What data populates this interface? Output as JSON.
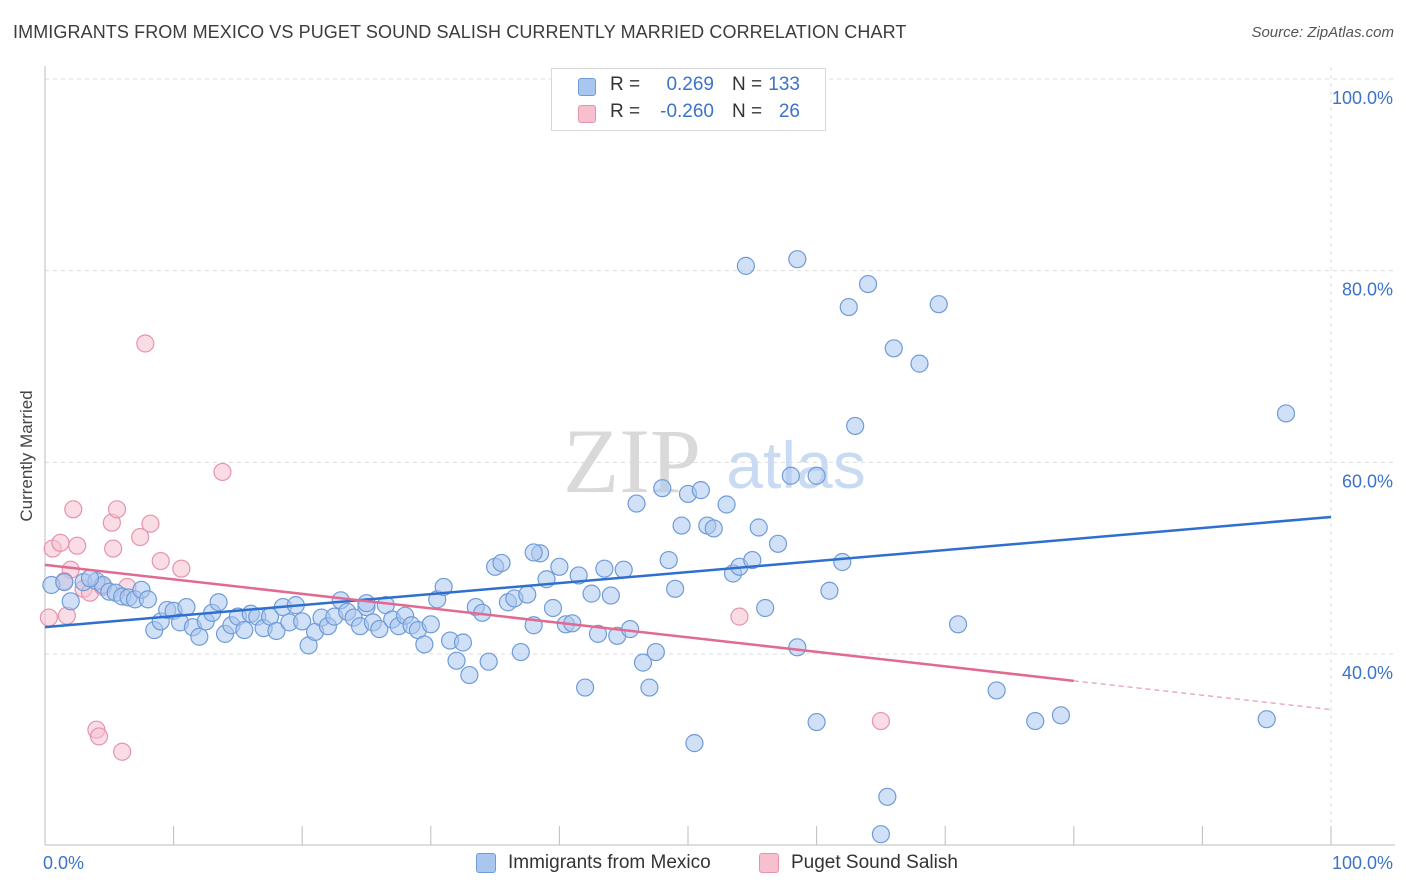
{
  "title": "IMMIGRANTS FROM MEXICO VS PUGET SOUND SALISH CURRENTLY MARRIED CORRELATION CHART",
  "source": "Source: ZipAtlas.com",
  "watermark": {
    "zip": "ZIP",
    "atlas": "atlas"
  },
  "legend": {
    "rows": [
      {
        "r_label": "R =",
        "r_value": "0.269",
        "n_label": "N =",
        "n_value": "133"
      },
      {
        "r_label": "R =",
        "r_value": "-0.260",
        "n_label": "N =",
        "n_value": "26"
      }
    ]
  },
  "bottom_legend": [
    {
      "label": "Immigrants from Mexico"
    },
    {
      "label": "Puget Sound Salish"
    }
  ],
  "colors": {
    "blue_fill": "#a9c6ef",
    "blue_stroke": "#6f9bd8",
    "blue_line": "#2f6fce",
    "pink_fill": "#f6c0cf",
    "pink_stroke": "#e693ad",
    "pink_line": "#e06a92",
    "tick_label": "#3b73c9",
    "grid": "#dcdcdc"
  },
  "chart_data": {
    "type": "scatter",
    "title": "IMMIGRANTS FROM MEXICO VS PUGET SOUND SALISH CURRENTLY MARRIED CORRELATION CHART",
    "xlabel": "",
    "ylabel": "Currently Married",
    "xlim": [
      0,
      100
    ],
    "ylim": [
      19,
      100
    ],
    "x_tick_labels": [
      "0.0%",
      "100.0%"
    ],
    "y_ticks": [
      40,
      60,
      80,
      100
    ],
    "y_tick_labels": [
      "40.0%",
      "60.0%",
      "80.0%",
      "100.0%"
    ],
    "grid": true,
    "legend_position": "top-center",
    "series": [
      {
        "name": "Immigrants from Mexico",
        "color": "#a9c6ef",
        "trend": {
          "x": [
            0,
            100
          ],
          "y": [
            42.8,
            54.3
          ],
          "style": "solid"
        },
        "points": [
          [
            0.5,
            47.2
          ],
          [
            1.5,
            47.5
          ],
          [
            2.0,
            45.5
          ],
          [
            3.0,
            47.5
          ],
          [
            4.0,
            47.6
          ],
          [
            4.5,
            47.2
          ],
          [
            5.0,
            46.5
          ],
          [
            5.5,
            46.4
          ],
          [
            6.0,
            46.0
          ],
          [
            6.5,
            45.9
          ],
          [
            7.0,
            45.7
          ],
          [
            7.5,
            46.7
          ],
          [
            8.0,
            45.7
          ],
          [
            8.5,
            42.5
          ],
          [
            9.0,
            43.4
          ],
          [
            9.5,
            44.6
          ],
          [
            10.0,
            44.5
          ],
          [
            10.5,
            43.3
          ],
          [
            11.0,
            44.9
          ],
          [
            11.5,
            42.8
          ],
          [
            12.0,
            41.8
          ],
          [
            12.5,
            43.4
          ],
          [
            13.0,
            44.3
          ],
          [
            13.5,
            45.4
          ],
          [
            14.0,
            42.1
          ],
          [
            14.5,
            43.0
          ],
          [
            15.0,
            43.9
          ],
          [
            15.5,
            42.5
          ],
          [
            16.0,
            44.2
          ],
          [
            16.5,
            43.9
          ],
          [
            17.0,
            42.7
          ],
          [
            17.5,
            43.9
          ],
          [
            18.0,
            42.4
          ],
          [
            18.5,
            44.9
          ],
          [
            19.0,
            43.3
          ],
          [
            19.5,
            45.1
          ],
          [
            20.0,
            43.4
          ],
          [
            20.5,
            40.9
          ],
          [
            21.0,
            42.3
          ],
          [
            21.5,
            43.8
          ],
          [
            22.0,
            42.9
          ],
          [
            22.5,
            43.9
          ],
          [
            23.0,
            45.6
          ],
          [
            23.5,
            44.4
          ],
          [
            24.0,
            43.8
          ],
          [
            24.5,
            42.9
          ],
          [
            25.0,
            44.9
          ],
          [
            25.5,
            43.3
          ],
          [
            26.0,
            42.6
          ],
          [
            26.5,
            45.1
          ],
          [
            27.0,
            43.6
          ],
          [
            27.5,
            42.9
          ],
          [
            28.0,
            44.0
          ],
          [
            28.5,
            43.0
          ],
          [
            29.0,
            42.5
          ],
          [
            29.5,
            41.0
          ],
          [
            30.0,
            43.1
          ],
          [
            30.5,
            45.7
          ],
          [
            31.0,
            47.0
          ],
          [
            31.5,
            41.4
          ],
          [
            32.0,
            39.3
          ],
          [
            32.5,
            41.2
          ],
          [
            33.0,
            37.8
          ],
          [
            33.5,
            44.9
          ],
          [
            34.0,
            44.3
          ],
          [
            34.5,
            39.2
          ],
          [
            35.0,
            49.1
          ],
          [
            35.5,
            49.5
          ],
          [
            36.0,
            45.4
          ],
          [
            36.5,
            45.8
          ],
          [
            37.0,
            40.2
          ],
          [
            37.5,
            46.2
          ],
          [
            38.0,
            43.0
          ],
          [
            38.5,
            50.5
          ],
          [
            39.0,
            47.8
          ],
          [
            39.5,
            44.8
          ],
          [
            40.0,
            49.1
          ],
          [
            40.5,
            43.1
          ],
          [
            41.0,
            43.2
          ],
          [
            41.5,
            48.2
          ],
          [
            42.0,
            36.5
          ],
          [
            42.5,
            46.3
          ],
          [
            43.0,
            42.1
          ],
          [
            43.5,
            48.9
          ],
          [
            44.0,
            46.1
          ],
          [
            44.5,
            41.9
          ],
          [
            45.0,
            48.8
          ],
          [
            45.5,
            42.6
          ],
          [
            46.0,
            55.7
          ],
          [
            46.5,
            39.1
          ],
          [
            47.0,
            36.5
          ],
          [
            47.5,
            40.2
          ],
          [
            48.0,
            57.3
          ],
          [
            48.5,
            49.8
          ],
          [
            49.0,
            46.8
          ],
          [
            49.5,
            53.4
          ],
          [
            50.0,
            56.7
          ],
          [
            50.5,
            30.7
          ],
          [
            51.0,
            57.1
          ],
          [
            51.5,
            53.4
          ],
          [
            52.0,
            53.1
          ],
          [
            53.0,
            55.6
          ],
          [
            53.5,
            48.4
          ],
          [
            54.0,
            49.1
          ],
          [
            55.0,
            49.8
          ],
          [
            55.5,
            53.2
          ],
          [
            56.0,
            44.8
          ],
          [
            57.0,
            51.5
          ],
          [
            58.0,
            58.6
          ],
          [
            58.5,
            40.7
          ],
          [
            60.0,
            58.6
          ],
          [
            61.0,
            46.6
          ],
          [
            62.0,
            49.6
          ],
          [
            63.0,
            63.8
          ],
          [
            64.0,
            78.6
          ],
          [
            65.5,
            25.1
          ],
          [
            66.0,
            71.9
          ],
          [
            68.0,
            70.3
          ],
          [
            69.5,
            76.5
          ],
          [
            71.0,
            43.1
          ],
          [
            74.0,
            36.2
          ],
          [
            77.0,
            33.0
          ],
          [
            79.0,
            33.6
          ],
          [
            95.0,
            33.2
          ],
          [
            96.5,
            65.1
          ],
          [
            54.5,
            80.5
          ],
          [
            58.5,
            81.2
          ],
          [
            62.5,
            76.2
          ],
          [
            65.0,
            21.2
          ],
          [
            60.0,
            32.9
          ],
          [
            38.0,
            50.6
          ],
          [
            25.0,
            45.3
          ],
          [
            3.5,
            47.9
          ]
        ]
      },
      {
        "name": "Puget Sound Salish",
        "color": "#f6c0cf",
        "trend": {
          "x": [
            0,
            80
          ],
          "y": [
            49.3,
            37.2
          ],
          "style": "solid",
          "dashed_to": [
            100,
            34.2
          ]
        },
        "points": [
          [
            0.3,
            43.8
          ],
          [
            0.6,
            51.0
          ],
          [
            1.2,
            51.6
          ],
          [
            1.7,
            44.0
          ],
          [
            2.0,
            48.8
          ],
          [
            2.2,
            55.1
          ],
          [
            2.5,
            51.3
          ],
          [
            3.0,
            46.8
          ],
          [
            3.5,
            46.4
          ],
          [
            4.0,
            32.1
          ],
          [
            4.2,
            31.4
          ],
          [
            5.2,
            53.7
          ],
          [
            5.3,
            51.0
          ],
          [
            5.6,
            55.1
          ],
          [
            6.0,
            29.8
          ],
          [
            6.4,
            47.0
          ],
          [
            7.4,
            52.2
          ],
          [
            7.8,
            72.4
          ],
          [
            8.2,
            53.6
          ],
          [
            9.0,
            49.7
          ],
          [
            10.6,
            48.9
          ],
          [
            13.8,
            59.0
          ],
          [
            54.0,
            43.9
          ],
          [
            65.0,
            33.0
          ],
          [
            1.5,
            47.6
          ],
          [
            4.5,
            47.0
          ]
        ]
      }
    ]
  }
}
